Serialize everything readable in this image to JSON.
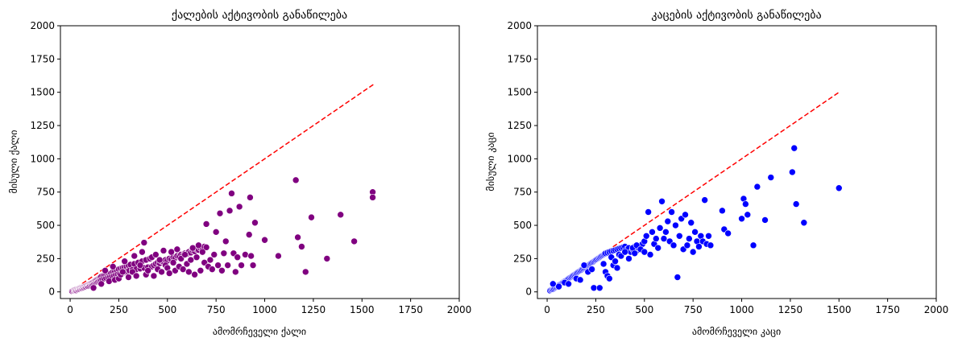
{
  "chart_data": [
    {
      "type": "scatter",
      "title": "ქალების აქტივობის განაწილება",
      "xlabel": "ამომრჩეველი ქალი",
      "ylabel": "მისული ქალი",
      "xlim": [
        -50,
        2000
      ],
      "ylim": [
        -50,
        2000
      ],
      "xticks": [
        0,
        250,
        500,
        750,
        1000,
        1250,
        1500,
        1750,
        2000
      ],
      "yticks": [
        0,
        250,
        500,
        750,
        1000,
        1250,
        1500,
        1750,
        2000
      ],
      "grid": false,
      "point_color": "#800080",
      "reference_line": {
        "x": [
          0,
          1560
        ],
        "y": [
          0,
          1560
        ],
        "color": "#ff0000",
        "style": "dashed"
      },
      "points": [
        [
          10,
          5
        ],
        [
          15,
          8
        ],
        [
          20,
          10
        ],
        [
          22,
          14
        ],
        [
          25,
          12
        ],
        [
          28,
          15
        ],
        [
          30,
          18
        ],
        [
          32,
          12
        ],
        [
          35,
          20
        ],
        [
          38,
          16
        ],
        [
          40,
          22
        ],
        [
          42,
          18
        ],
        [
          45,
          25
        ],
        [
          48,
          20
        ],
        [
          50,
          28
        ],
        [
          52,
          24
        ],
        [
          55,
          30
        ],
        [
          58,
          26
        ],
        [
          60,
          33
        ],
        [
          62,
          28
        ],
        [
          65,
          35
        ],
        [
          68,
          30
        ],
        [
          70,
          38
        ],
        [
          72,
          32
        ],
        [
          75,
          40
        ],
        [
          78,
          36
        ],
        [
          80,
          45
        ],
        [
          82,
          38
        ],
        [
          85,
          48
        ],
        [
          88,
          42
        ],
        [
          90,
          50
        ],
        [
          92,
          44
        ],
        [
          95,
          55
        ],
        [
          98,
          47
        ],
        [
          100,
          58
        ],
        [
          102,
          52
        ],
        [
          105,
          62
        ],
        [
          108,
          55
        ],
        [
          110,
          65
        ],
        [
          112,
          58
        ],
        [
          115,
          70
        ],
        [
          118,
          60
        ],
        [
          120,
          75
        ],
        [
          123,
          65
        ],
        [
          125,
          80
        ],
        [
          128,
          68
        ],
        [
          130,
          85
        ],
        [
          133,
          72
        ],
        [
          135,
          90
        ],
        [
          138,
          76
        ],
        [
          140,
          95
        ],
        [
          143,
          80
        ],
        [
          145,
          100
        ],
        [
          148,
          84
        ],
        [
          150,
          105
        ],
        [
          153,
          88
        ],
        [
          155,
          110
        ],
        [
          158,
          92
        ],
        [
          160,
          115
        ],
        [
          165,
          98
        ],
        [
          170,
          120
        ],
        [
          175,
          100
        ],
        [
          180,
          125
        ],
        [
          185,
          105
        ],
        [
          190,
          130
        ],
        [
          195,
          110
        ],
        [
          200,
          135
        ],
        [
          205,
          115
        ],
        [
          210,
          140
        ],
        [
          215,
          118
        ],
        [
          220,
          150
        ],
        [
          225,
          122
        ],
        [
          230,
          155
        ],
        [
          235,
          128
        ],
        [
          240,
          160
        ],
        [
          245,
          132
        ],
        [
          250,
          170
        ],
        [
          255,
          136
        ],
        [
          260,
          175
        ],
        [
          265,
          140
        ],
        [
          270,
          180
        ],
        [
          275,
          145
        ],
        [
          280,
          185
        ],
        [
          285,
          150
        ],
        [
          290,
          190
        ],
        [
          295,
          155
        ],
        [
          300,
          200
        ],
        [
          305,
          160
        ],
        [
          310,
          205
        ],
        [
          320,
          165
        ],
        [
          330,
          210
        ],
        [
          340,
          170
        ],
        [
          350,
          220
        ],
        [
          360,
          175
        ],
        [
          370,
          230
        ],
        [
          380,
          180
        ],
        [
          390,
          240
        ],
        [
          400,
          185
        ],
        [
          410,
          250
        ],
        [
          420,
          190
        ],
        [
          430,
          200
        ],
        [
          440,
          210
        ],
        [
          450,
          220
        ],
        [
          460,
          215
        ],
        [
          470,
          230
        ],
        [
          480,
          225
        ],
        [
          490,
          240
        ],
        [
          500,
          235
        ],
        [
          510,
          250
        ],
        [
          520,
          245
        ],
        [
          530,
          260
        ],
        [
          540,
          255
        ],
        [
          550,
          270
        ],
        [
          560,
          265
        ],
        [
          570,
          280
        ],
        [
          580,
          275
        ],
        [
          590,
          290
        ],
        [
          600,
          285
        ],
        [
          610,
          300
        ],
        [
          620,
          295
        ],
        [
          630,
          310
        ],
        [
          640,
          305
        ],
        [
          650,
          320
        ],
        [
          660,
          315
        ],
        [
          670,
          330
        ],
        [
          680,
          325
        ],
        [
          690,
          340
        ],
        [
          700,
          335
        ],
        [
          120,
          30
        ],
        [
          160,
          60
        ],
        [
          180,
          160
        ],
        [
          200,
          80
        ],
        [
          220,
          190
        ],
        [
          230,
          90
        ],
        [
          250,
          100
        ],
        [
          260,
          130
        ],
        [
          270,
          150
        ],
        [
          280,
          230
        ],
        [
          300,
          110
        ],
        [
          320,
          150
        ],
        [
          330,
          270
        ],
        [
          340,
          120
        ],
        [
          360,
          200
        ],
        [
          370,
          300
        ],
        [
          380,
          370
        ],
        [
          390,
          130
        ],
        [
          400,
          160
        ],
        [
          420,
          260
        ],
        [
          430,
          120
        ],
        [
          440,
          280
        ],
        [
          450,
          170
        ],
        [
          460,
          240
        ],
        [
          470,
          150
        ],
        [
          480,
          310
        ],
        [
          490,
          200
        ],
        [
          500,
          180
        ],
        [
          510,
          140
        ],
        [
          520,
          300
        ],
        [
          530,
          220
        ],
        [
          540,
          160
        ],
        [
          550,
          320
        ],
        [
          560,
          190
        ],
        [
          570,
          250
        ],
        [
          580,
          170
        ],
        [
          590,
          280
        ],
        [
          600,
          210
        ],
        [
          610,
          150
        ],
        [
          620,
          240
        ],
        [
          630,
          330
        ],
        [
          640,
          130
        ],
        [
          650,
          260
        ],
        [
          660,
          350
        ],
        [
          670,
          160
        ],
        [
          680,
          300
        ],
        [
          690,
          220
        ],
        [
          700,
          510
        ],
        [
          710,
          190
        ],
        [
          720,
          240
        ],
        [
          730,
          170
        ],
        [
          740,
          280
        ],
        [
          750,
          450
        ],
        [
          760,
          200
        ],
        [
          770,
          590
        ],
        [
          780,
          160
        ],
        [
          790,
          290
        ],
        [
          800,
          380
        ],
        [
          810,
          200
        ],
        [
          820,
          610
        ],
        [
          830,
          740
        ],
        [
          840,
          290
        ],
        [
          850,
          150
        ],
        [
          860,
          260
        ],
        [
          870,
          640
        ],
        [
          880,
          200
        ],
        [
          900,
          280
        ],
        [
          920,
          430
        ],
        [
          925,
          710
        ],
        [
          930,
          270
        ],
        [
          940,
          200
        ],
        [
          950,
          520
        ],
        [
          1000,
          390
        ],
        [
          1070,
          270
        ],
        [
          1160,
          840
        ],
        [
          1170,
          410
        ],
        [
          1190,
          340
        ],
        [
          1210,
          150
        ],
        [
          1240,
          560
        ],
        [
          1320,
          250
        ],
        [
          1390,
          580
        ],
        [
          1460,
          380
        ],
        [
          1555,
          750
        ],
        [
          1555,
          710
        ]
      ]
    },
    {
      "type": "scatter",
      "title": "კაცების აქტივობის განაწილება",
      "xlabel": "ამომრჩეველი კაცი",
      "ylabel": "მისული კაცი",
      "xlim": [
        -50,
        2000
      ],
      "ylim": [
        -50,
        2000
      ],
      "xticks": [
        0,
        250,
        500,
        750,
        1000,
        1250,
        1500,
        1750,
        2000
      ],
      "yticks": [
        0,
        250,
        500,
        750,
        1000,
        1250,
        1500,
        1750,
        2000
      ],
      "grid": false,
      "point_color": "#0000ff",
      "reference_line": {
        "x": [
          0,
          1500
        ],
        "y": [
          0,
          1500
        ],
        "color": "#ff0000",
        "style": "dashed"
      },
      "points": [
        [
          15,
          10
        ],
        [
          20,
          15
        ],
        [
          25,
          18
        ],
        [
          30,
          20
        ],
        [
          35,
          25
        ],
        [
          40,
          30
        ],
        [
          45,
          35
        ],
        [
          50,
          40
        ],
        [
          55,
          45
        ],
        [
          60,
          50
        ],
        [
          65,
          55
        ],
        [
          70,
          60
        ],
        [
          75,
          65
        ],
        [
          80,
          70
        ],
        [
          85,
          75
        ],
        [
          90,
          80
        ],
        [
          95,
          85
        ],
        [
          100,
          90
        ],
        [
          105,
          95
        ],
        [
          110,
          100
        ],
        [
          115,
          105
        ],
        [
          120,
          110
        ],
        [
          125,
          115
        ],
        [
          130,
          120
        ],
        [
          135,
          125
        ],
        [
          140,
          130
        ],
        [
          145,
          135
        ],
        [
          150,
          140
        ],
        [
          155,
          145
        ],
        [
          160,
          150
        ],
        [
          165,
          155
        ],
        [
          170,
          160
        ],
        [
          175,
          165
        ],
        [
          180,
          170
        ],
        [
          185,
          175
        ],
        [
          190,
          180
        ],
        [
          195,
          185
        ],
        [
          200,
          190
        ],
        [
          205,
          195
        ],
        [
          210,
          200
        ],
        [
          215,
          205
        ],
        [
          220,
          210
        ],
        [
          225,
          215
        ],
        [
          230,
          220
        ],
        [
          235,
          225
        ],
        [
          240,
          230
        ],
        [
          245,
          235
        ],
        [
          250,
          240
        ],
        [
          255,
          245
        ],
        [
          260,
          250
        ],
        [
          265,
          255
        ],
        [
          270,
          260
        ],
        [
          275,
          265
        ],
        [
          280,
          270
        ],
        [
          285,
          275
        ],
        [
          290,
          280
        ],
        [
          295,
          285
        ],
        [
          300,
          290
        ],
        [
          310,
          295
        ],
        [
          320,
          300
        ],
        [
          330,
          305
        ],
        [
          340,
          310
        ],
        [
          350,
          315
        ],
        [
          360,
          320
        ],
        [
          370,
          325
        ],
        [
          380,
          330
        ],
        [
          390,
          335
        ],
        [
          400,
          340
        ],
        [
          410,
          320
        ],
        [
          420,
          330
        ],
        [
          430,
          300
        ],
        [
          440,
          320
        ],
        [
          450,
          340
        ],
        [
          460,
          310
        ],
        [
          470,
          330
        ],
        [
          480,
          350
        ],
        [
          490,
          360
        ],
        [
          500,
          380
        ],
        [
          30,
          60
        ],
        [
          60,
          40
        ],
        [
          90,
          70
        ],
        [
          110,
          60
        ],
        [
          150,
          100
        ],
        [
          170,
          90
        ],
        [
          190,
          200
        ],
        [
          210,
          150
        ],
        [
          230,
          170
        ],
        [
          240,
          30
        ],
        [
          270,
          30
        ],
        [
          290,
          210
        ],
        [
          300,
          150
        ],
        [
          310,
          120
        ],
        [
          320,
          100
        ],
        [
          330,
          260
        ],
        [
          340,
          200
        ],
        [
          350,
          230
        ],
        [
          360,
          180
        ],
        [
          370,
          280
        ],
        [
          380,
          270
        ],
        [
          400,
          300
        ],
        [
          420,
          250
        ],
        [
          440,
          330
        ],
        [
          450,
          290
        ],
        [
          460,
          350
        ],
        [
          480,
          320
        ],
        [
          500,
          300
        ],
        [
          510,
          420
        ],
        [
          520,
          600
        ],
        [
          530,
          280
        ],
        [
          540,
          450
        ],
        [
          550,
          360
        ],
        [
          560,
          400
        ],
        [
          570,
          330
        ],
        [
          580,
          480
        ],
        [
          590,
          680
        ],
        [
          600,
          400
        ],
        [
          610,
          450
        ],
        [
          620,
          530
        ],
        [
          630,
          380
        ],
        [
          640,
          600
        ],
        [
          650,
          350
        ],
        [
          660,
          500
        ],
        [
          670,
          110
        ],
        [
          680,
          420
        ],
        [
          690,
          550
        ],
        [
          700,
          320
        ],
        [
          710,
          580
        ],
        [
          720,
          350
        ],
        [
          730,
          400
        ],
        [
          740,
          520
        ],
        [
          750,
          300
        ],
        [
          760,
          450
        ],
        [
          770,
          380
        ],
        [
          780,
          340
        ],
        [
          790,
          420
        ],
        [
          800,
          380
        ],
        [
          810,
          690
        ],
        [
          820,
          360
        ],
        [
          830,
          420
        ],
        [
          840,
          350
        ],
        [
          900,
          610
        ],
        [
          910,
          470
        ],
        [
          930,
          440
        ],
        [
          1000,
          550
        ],
        [
          1010,
          700
        ],
        [
          1020,
          660
        ],
        [
          1030,
          580
        ],
        [
          1060,
          350
        ],
        [
          1080,
          790
        ],
        [
          1120,
          540
        ],
        [
          1150,
          860
        ],
        [
          1260,
          900
        ],
        [
          1270,
          1080
        ],
        [
          1280,
          660
        ],
        [
          1320,
          520
        ],
        [
          1500,
          780
        ]
      ]
    }
  ]
}
